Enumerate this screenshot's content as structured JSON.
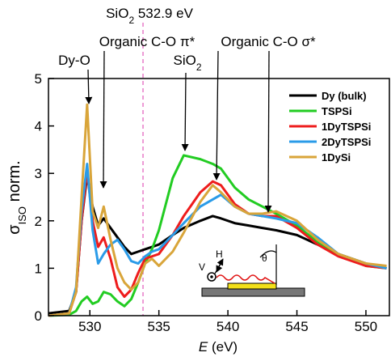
{
  "chart_data": {
    "type": "line",
    "x": [
      527,
      528.5,
      529,
      529.4,
      529.8,
      530.2,
      530.6,
      531,
      531.5,
      532,
      532.5,
      533,
      533.5,
      534,
      534.5,
      535,
      536,
      536.8,
      538,
      538.9,
      539.5,
      540.5,
      541.5,
      542.5,
      543.5,
      545,
      546.5,
      548,
      550,
      551.5
    ],
    "series": [
      {
        "name": "Dy (bulk)",
        "color": "#000000",
        "values": [
          0.05,
          0.1,
          0.5,
          2.0,
          2.95,
          2.3,
          1.9,
          2.05,
          1.85,
          1.65,
          1.45,
          1.3,
          1.35,
          1.4,
          1.45,
          1.5,
          1.7,
          1.85,
          2.0,
          2.1,
          2.05,
          1.95,
          1.9,
          1.85,
          1.8,
          1.7,
          1.5,
          1.3,
          1.1,
          1.0
        ]
      },
      {
        "name": "TSPSi",
        "color": "#22cc22",
        "values": [
          0.0,
          0.02,
          0.1,
          0.3,
          0.4,
          0.25,
          0.3,
          0.5,
          0.45,
          0.3,
          0.2,
          0.35,
          0.7,
          1.1,
          1.4,
          1.8,
          2.9,
          3.38,
          3.3,
          3.2,
          3.1,
          2.7,
          2.45,
          2.3,
          2.15,
          1.9,
          1.55,
          1.3,
          1.05,
          1.0
        ]
      },
      {
        "name": "1DyTSPSi",
        "color": "#ee1c1c",
        "values": [
          0.0,
          0.05,
          0.5,
          2.0,
          3.05,
          2.0,
          1.45,
          1.65,
          1.2,
          0.6,
          0.4,
          0.55,
          0.9,
          1.2,
          1.25,
          1.3,
          1.7,
          2.1,
          2.6,
          2.83,
          2.75,
          2.35,
          2.15,
          2.1,
          2.1,
          1.85,
          1.5,
          1.25,
          1.05,
          1.0
        ]
      },
      {
        "name": "2DyTSPSi",
        "color": "#2a9be8",
        "values": [
          0.0,
          0.05,
          0.6,
          2.2,
          3.2,
          1.8,
          1.1,
          1.3,
          1.5,
          1.6,
          1.4,
          1.15,
          1.1,
          1.25,
          1.35,
          1.4,
          1.7,
          1.95,
          2.3,
          2.45,
          2.55,
          2.3,
          2.15,
          2.1,
          2.05,
          1.95,
          1.65,
          1.3,
          1.1,
          1.0
        ]
      },
      {
        "name": "1DySi",
        "color": "#d9a53a",
        "values": [
          0.0,
          0.05,
          0.5,
          2.5,
          4.45,
          2.2,
          1.85,
          2.3,
          1.6,
          1.0,
          0.7,
          0.55,
          0.7,
          1.1,
          1.2,
          1.05,
          1.35,
          1.75,
          2.4,
          2.75,
          2.6,
          2.3,
          2.15,
          2.15,
          2.2,
          2.0,
          1.6,
          1.3,
          1.1,
          1.05
        ]
      }
    ],
    "xlim": [
      527,
      551.7
    ],
    "xticks": [
      530,
      535,
      540,
      545,
      550
    ],
    "ylim": [
      0,
      5
    ],
    "yticks": [
      0,
      1,
      2,
      3,
      4,
      5
    ],
    "x_label": {
      "italic": "E",
      "rest": " (eV)"
    },
    "y_label": {
      "text": "σ",
      "sub": "ISO",
      "after": " norm."
    },
    "reference_line": {
      "x": 533.85,
      "color": "#e87ac8"
    },
    "legend": "upper right",
    "annotations": [
      {
        "text": "SiO",
        "sub": "2",
        "after": " 532.9 eV"
      },
      {
        "text": "Organic C-O π*"
      },
      {
        "text": "Dy-O"
      },
      {
        "text": "SiO",
        "sub": "2"
      },
      {
        "text": "Organic C-O σ*"
      }
    ],
    "inset_labels": [
      "V",
      "H",
      "θ"
    ]
  }
}
